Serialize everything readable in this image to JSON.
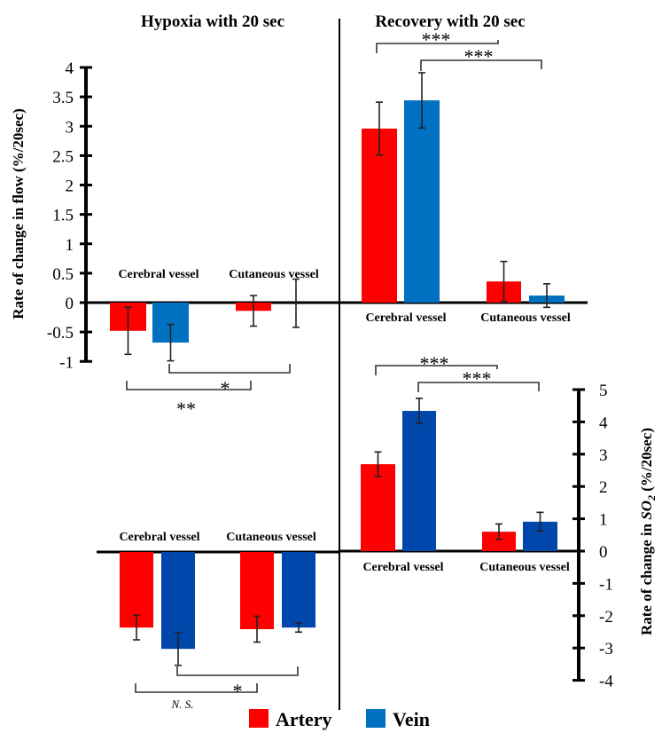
{
  "chart_data": [
    {
      "id": "flow_hypoxia",
      "type": "bar",
      "title": "Hypoxia with 20 sec",
      "ylabel": "Rate of change in flow (%/20sec)",
      "ylim": [
        -1,
        4
      ],
      "yticks": [
        "4",
        "3.5",
        "3",
        "2.5",
        "2",
        "1.5",
        "1",
        "0.5",
        "0",
        "-0.5",
        "-1"
      ],
      "categories": [
        "Cerebral vessel",
        "Cutaneous vessel"
      ],
      "series": [
        {
          "name": "Artery",
          "values": [
            -0.48,
            -0.14
          ],
          "errors": [
            0.4,
            0.26
          ]
        },
        {
          "name": "Vein",
          "values": [
            -0.68,
            -0.01
          ],
          "errors": [
            0.31,
            0.41
          ]
        }
      ],
      "significance": [
        {
          "from": "Cerebral vessel Vein",
          "to": "Cutaneous vessel Vein",
          "label": "*"
        },
        {
          "from": "Cerebral vessel Artery",
          "to": "Cutaneous vessel Artery",
          "label": "**"
        }
      ]
    },
    {
      "id": "flow_recovery",
      "type": "bar",
      "title": "Recovery with 20 sec",
      "ylabel": "Rate of change in flow (%/20sec)",
      "ylim": [
        -1,
        4
      ],
      "categories": [
        "Cerebral vessel",
        "Cutaneous vessel"
      ],
      "series": [
        {
          "name": "Artery",
          "values": [
            2.96,
            0.36
          ],
          "errors": [
            0.45,
            0.34
          ]
        },
        {
          "name": "Vein",
          "values": [
            3.44,
            0.12
          ],
          "errors": [
            0.47,
            0.2
          ]
        }
      ],
      "significance": [
        {
          "from": "Cerebral vessel Artery",
          "to": "Cutaneous vessel Artery",
          "label": "***"
        },
        {
          "from": "Cerebral vessel Vein",
          "to": "Cutaneous vessel Vein",
          "label": "***"
        }
      ]
    },
    {
      "id": "so2_hypoxia",
      "type": "bar",
      "title": "Hypoxia with 20 sec",
      "ylabel": "Rate of change in SO2 (%/20sec)",
      "ylim": [
        -4,
        5
      ],
      "categories": [
        "Cerebral vessel",
        "Cutaneous vessel"
      ],
      "series": [
        {
          "name": "Artery",
          "values": [
            -2.34,
            -2.39
          ],
          "errors": [
            0.38,
            0.4
          ]
        },
        {
          "name": "Vein",
          "values": [
            -3.0,
            -2.34
          ],
          "errors": [
            0.51,
            0.14
          ]
        }
      ],
      "significance": [
        {
          "from": "Cerebral vessel Vein",
          "to": "Cutaneous vessel Vein",
          "label": "*"
        },
        {
          "from": "Cerebral vessel Artery",
          "to": "Cutaneous vessel Artery",
          "label": "N. S."
        }
      ]
    },
    {
      "id": "so2_recovery",
      "type": "bar",
      "title": "Recovery with 20 sec",
      "ylabel": "Rate of change in SO2 (%/20sec)",
      "ylim": [
        -4,
        5
      ],
      "yticks": [
        "5",
        "4",
        "3",
        "2",
        "1",
        "0",
        "-1",
        "-2",
        "-3",
        "-4"
      ],
      "categories": [
        "Cerebral vessel",
        "Cutaneous vessel"
      ],
      "series": [
        {
          "name": "Artery",
          "values": [
            2.69,
            0.6
          ],
          "errors": [
            0.38,
            0.24
          ]
        },
        {
          "name": "Vein",
          "values": [
            4.34,
            0.91
          ],
          "errors": [
            0.39,
            0.29
          ]
        }
      ],
      "significance": [
        {
          "from": "Cerebral vessel Artery",
          "to": "Cutaneous vessel Artery",
          "label": "***"
        },
        {
          "from": "Cerebral vessel Vein",
          "to": "Cutaneous vessel Vein",
          "label": "***"
        }
      ]
    }
  ],
  "labels": {
    "title_left": "Hypoxia with 20 sec",
    "title_right": "Recovery with 20 sec",
    "ylabel_flow": "Rate of change in flow (%/20sec)",
    "ylabel_so2_prefix": "Rate of change in ",
    "ylabel_so2_var": "SO",
    "ylabel_so2_sub": "2",
    "ylabel_so2_suffix": " (%/20sec)",
    "cerebral": "Cerebral vessel",
    "cutaneous": "Cutaneous vessel"
  },
  "legend": [
    {
      "name": "Artery",
      "color": "#ff0000"
    },
    {
      "name": "Vein",
      "color": "#0070c0"
    }
  ],
  "colors": {
    "artery": "#ff0000",
    "vein_flow": "#0070c0",
    "vein_so2": "#0047ab",
    "axis": "#000000"
  }
}
